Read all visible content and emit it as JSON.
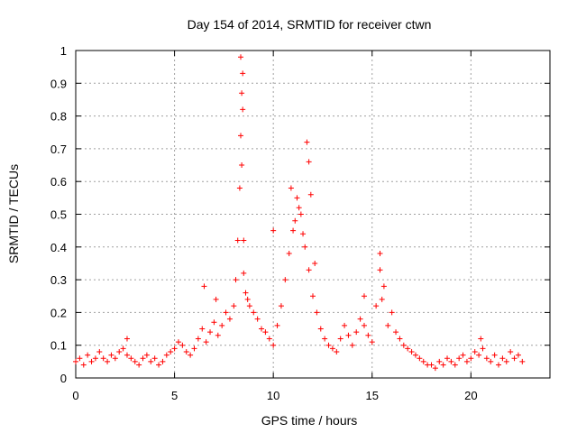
{
  "chart_data": {
    "type": "scatter",
    "title": "Day 154 of 2014, SRMTID for receiver ctwn",
    "xlabel": "GPS time / hours",
    "ylabel": "SRMTID / TECUs",
    "xlim": [
      0,
      24
    ],
    "ylim": [
      0,
      1
    ],
    "x_ticks": [
      0,
      5,
      10,
      15,
      20
    ],
    "y_ticks": [
      0,
      0.1,
      0.2,
      0.3,
      0.4,
      0.5,
      0.6,
      0.7,
      0.8,
      0.9,
      1
    ],
    "x_tick_labels": [
      "0",
      "5",
      "10",
      "15",
      "20"
    ],
    "y_tick_labels": [
      "0",
      "0.1",
      "0.2",
      "0.3",
      "0.4",
      "0.5",
      "0.6",
      "0.7",
      "0.8",
      "0.9",
      "1"
    ],
    "grid": true,
    "marker": "+",
    "color": "#ff0000",
    "series": [
      {
        "name": "SRMTID",
        "x": [
          0.0,
          0.2,
          0.4,
          0.6,
          0.8,
          1.0,
          1.2,
          1.4,
          1.6,
          1.8,
          2.0,
          2.2,
          2.4,
          2.6,
          2.8,
          3.0,
          3.2,
          3.4,
          3.6,
          3.8,
          4.0,
          4.2,
          4.4,
          4.6,
          4.8,
          5.0,
          5.2,
          5.4,
          5.6,
          5.8,
          6.0,
          6.2,
          6.4,
          6.6,
          6.8,
          7.0,
          7.2,
          7.4,
          7.6,
          7.8,
          8.0,
          8.1,
          8.2,
          8.3,
          8.35,
          8.4,
          8.45,
          8.5,
          8.6,
          8.7,
          8.8,
          9.0,
          9.2,
          9.4,
          9.6,
          9.8,
          10.0,
          10.2,
          10.4,
          10.6,
          10.8,
          11.0,
          11.2,
          11.4,
          11.6,
          11.8,
          12.0,
          12.2,
          12.4,
          12.6,
          12.8,
          13.0,
          13.2,
          13.4,
          13.6,
          13.8,
          14.0,
          14.2,
          14.4,
          14.6,
          14.8,
          15.0,
          15.2,
          15.4,
          15.6,
          15.8,
          16.0,
          16.2,
          16.4,
          16.6,
          16.8,
          17.0,
          17.2,
          17.4,
          17.6,
          17.8,
          18.0,
          18.2,
          18.4,
          18.6,
          18.8,
          19.0,
          19.2,
          19.4,
          19.6,
          19.8,
          20.0,
          20.2,
          20.4,
          20.6,
          20.8,
          21.0,
          21.2,
          21.4,
          21.6,
          21.8,
          22.0,
          22.2,
          22.4,
          22.6,
          8.35,
          8.4,
          8.45,
          8.5,
          11.7,
          11.8,
          11.9,
          10.9,
          11.1,
          11.3,
          11.5,
          15.4,
          15.5,
          10.0,
          12.1,
          14.6,
          6.5,
          7.1,
          2.6,
          20.5
        ],
        "y": [
          0.05,
          0.06,
          0.04,
          0.07,
          0.05,
          0.06,
          0.08,
          0.06,
          0.05,
          0.07,
          0.06,
          0.08,
          0.09,
          0.07,
          0.06,
          0.05,
          0.04,
          0.06,
          0.07,
          0.05,
          0.06,
          0.04,
          0.05,
          0.07,
          0.08,
          0.09,
          0.11,
          0.1,
          0.08,
          0.07,
          0.09,
          0.12,
          0.15,
          0.11,
          0.14,
          0.17,
          0.13,
          0.16,
          0.2,
          0.18,
          0.22,
          0.3,
          0.42,
          0.58,
          0.74,
          0.87,
          0.93,
          0.32,
          0.26,
          0.24,
          0.22,
          0.2,
          0.18,
          0.15,
          0.14,
          0.12,
          0.1,
          0.16,
          0.22,
          0.3,
          0.38,
          0.45,
          0.55,
          0.5,
          0.4,
          0.33,
          0.25,
          0.2,
          0.15,
          0.12,
          0.1,
          0.09,
          0.08,
          0.12,
          0.16,
          0.13,
          0.1,
          0.14,
          0.18,
          0.16,
          0.13,
          0.11,
          0.22,
          0.38,
          0.28,
          0.16,
          0.2,
          0.14,
          0.12,
          0.1,
          0.09,
          0.08,
          0.07,
          0.06,
          0.05,
          0.04,
          0.04,
          0.03,
          0.05,
          0.04,
          0.06,
          0.05,
          0.04,
          0.06,
          0.07,
          0.05,
          0.06,
          0.08,
          0.07,
          0.09,
          0.06,
          0.05,
          0.07,
          0.04,
          0.06,
          0.05,
          0.08,
          0.06,
          0.07,
          0.05,
          0.98,
          0.65,
          0.82,
          0.42,
          0.72,
          0.66,
          0.56,
          0.58,
          0.48,
          0.52,
          0.44,
          0.33,
          0.24,
          0.45,
          0.35,
          0.25,
          0.28,
          0.24,
          0.12,
          0.12
        ]
      }
    ]
  }
}
